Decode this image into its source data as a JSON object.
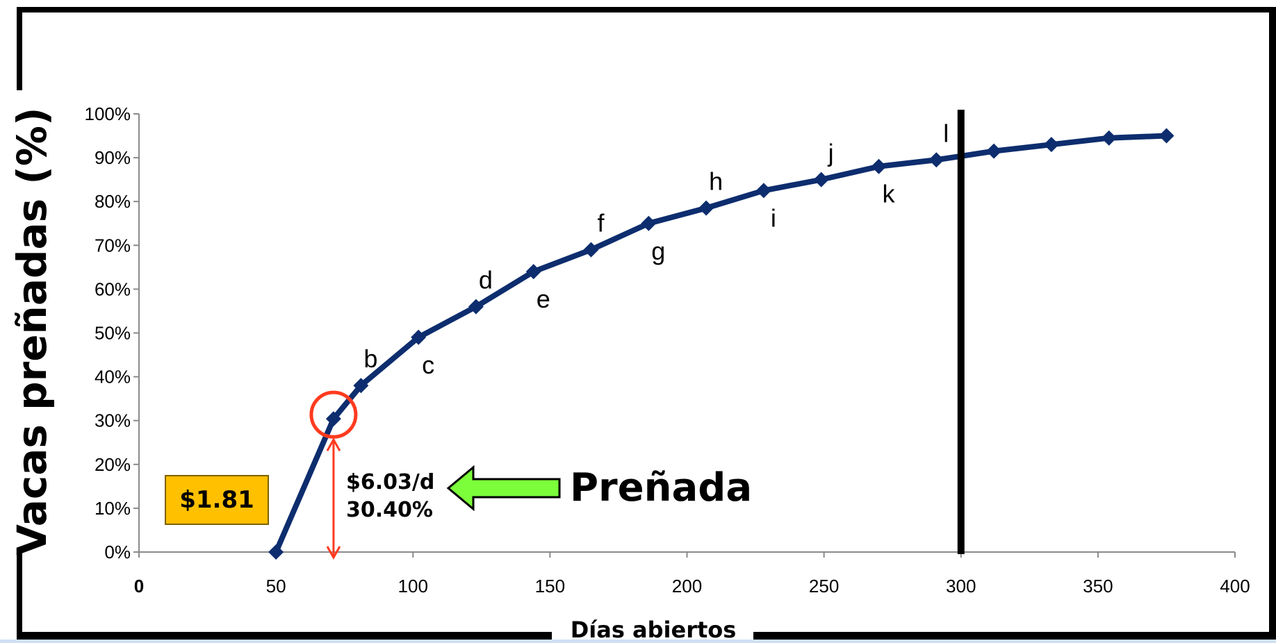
{
  "chart_data": {
    "type": "line",
    "xlabel": "Días abiertos",
    "ylabel": "Vacas preñadas (%)",
    "xlim": [
      0,
      400
    ],
    "ylim": [
      0,
      100
    ],
    "x_ticks": [
      "0",
      "50",
      "100",
      "150",
      "200",
      "250",
      "300",
      "350",
      "400"
    ],
    "y_ticks": [
      "0%",
      "10%",
      "20%",
      "30%",
      "40%",
      "50%",
      "60%",
      "70%",
      "80%",
      "90%",
      "100%"
    ],
    "grid": false,
    "series": [
      {
        "color": "#0d2d6e",
        "marker": "diamond",
        "x": [
          50,
          71,
          81,
          102,
          123,
          144,
          165,
          186,
          207,
          228,
          249,
          270,
          291,
          312,
          333,
          354,
          375
        ],
        "y": [
          0,
          30.4,
          38,
          49,
          56,
          64,
          69,
          75,
          78.5,
          82.5,
          85,
          88,
          89.5,
          91.5,
          93,
          94.5,
          95
        ]
      }
    ],
    "point_labels": [
      {
        "text": "b",
        "x": 81,
        "y": 38,
        "pos": "above"
      },
      {
        "text": "c",
        "x": 102,
        "y": 49,
        "pos": "below"
      },
      {
        "text": "d",
        "x": 123,
        "y": 56,
        "pos": "above"
      },
      {
        "text": "e",
        "x": 144,
        "y": 64,
        "pos": "below"
      },
      {
        "text": "f",
        "x": 165,
        "y": 69,
        "pos": "above"
      },
      {
        "text": "g",
        "x": 186,
        "y": 75,
        "pos": "below"
      },
      {
        "text": "h",
        "x": 207,
        "y": 78.5,
        "pos": "above"
      },
      {
        "text": "i",
        "x": 228,
        "y": 82.5,
        "pos": "below"
      },
      {
        "text": "j",
        "x": 249,
        "y": 85,
        "pos": "above"
      },
      {
        "text": "k",
        "x": 270,
        "y": 88,
        "pos": "below"
      },
      {
        "text": "l",
        "x": 291,
        "y": 89.5,
        "pos": "above"
      }
    ],
    "vertical_line_x": 300,
    "highlight_point": {
      "x": 71,
      "y": 30.4,
      "color": "#ff3b1f"
    }
  },
  "annotations": {
    "price_box": "$1.81",
    "rate_line1": "$6.03/d",
    "rate_line2": "30.40%",
    "arrow_label": "Preñada",
    "arrow_color": "#7cff3a",
    "price_box_color": "#ffc000"
  }
}
